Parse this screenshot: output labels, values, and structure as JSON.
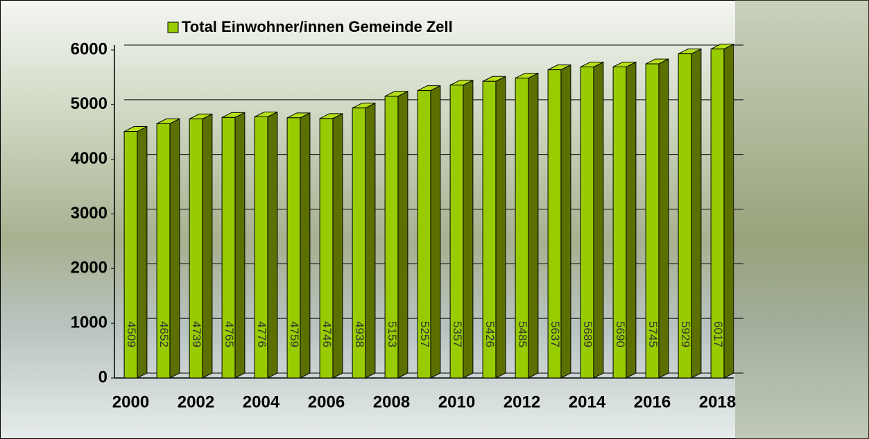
{
  "chart_data": {
    "type": "bar3d",
    "legend": "Total Einwohner/innen Gemeinde Zell",
    "categories": [
      "2000",
      null,
      "2002",
      null,
      "2004",
      null,
      "2006",
      null,
      "2008",
      null,
      "2010",
      null,
      "2012",
      null,
      "2014",
      null,
      "2016",
      null,
      "2018"
    ],
    "values": [
      4509,
      4652,
      4739,
      4765,
      4776,
      4759,
      4746,
      4938,
      5153,
      5257,
      5357,
      5426,
      5485,
      5637,
      5689,
      5690,
      5745,
      5929,
      6017
    ],
    "color": "#99cc00",
    "ylim": [
      0,
      6000
    ],
    "yticks": [
      0,
      1000,
      2000,
      3000,
      4000,
      5000,
      6000
    ],
    "grid": true
  }
}
